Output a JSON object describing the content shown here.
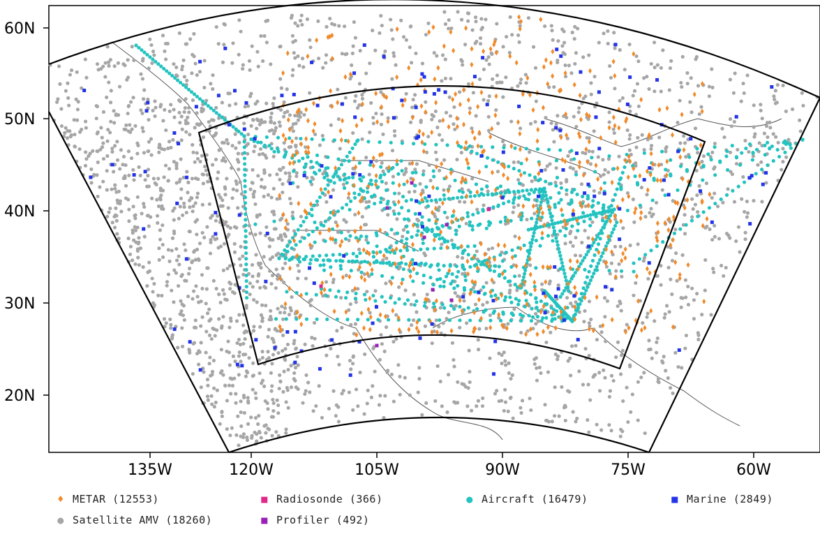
{
  "map": {
    "lat_ticks": [
      "60N",
      "50N",
      "40N",
      "30N",
      "20N"
    ],
    "lon_ticks": [
      "135W",
      "120W",
      "105W",
      "90W",
      "75W",
      "60W"
    ]
  },
  "legend": {
    "metar": "METAR (12553)",
    "radiosonde": "Radiosonde (366)",
    "aircraft": "Aircraft (16479)",
    "marine": "Marine (2849)",
    "satellite_amv": "Satellite AMV (18260)",
    "profiler": "Profiler (492)"
  },
  "colors": {
    "metar": "#f08a2a",
    "radiosonde": "#e0288a",
    "aircraft": "#22c3c0",
    "marine": "#2233e8",
    "satellite_amv": "#a6a6a6",
    "profiler": "#9a20b8",
    "domain_outline": "#000000",
    "coastline": "#555555"
  },
  "icons": {
    "metar": "diamond-icon",
    "radiosonde": "square-icon",
    "aircraft": "circle-icon",
    "marine": "square-icon",
    "satellite_amv": "circle-icon",
    "profiler": "square-icon"
  }
}
